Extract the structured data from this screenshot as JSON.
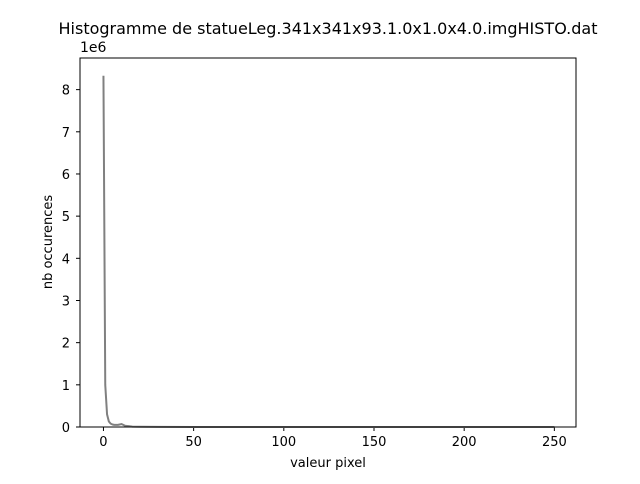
{
  "chart_data": {
    "type": "line",
    "title": "Histogramme de statueLeg.341x341x93.1.0x1.0x4.0.imgHISTO.dat",
    "xlabel": "valeur pixel",
    "ylabel": "nb occurences",
    "y_scale_label": "1e6",
    "xlim": [
      -13,
      262
    ],
    "ylim": [
      0,
      8.75
    ],
    "x_ticks": [
      0,
      50,
      100,
      150,
      200,
      250
    ],
    "y_ticks": [
      0,
      1,
      2,
      3,
      4,
      5,
      6,
      7,
      8
    ],
    "grid": false,
    "colors": {
      "line": "#808080",
      "axis": "#000000",
      "background": "#ffffff"
    },
    "series": [
      {
        "x": [
          0,
          1,
          2,
          3,
          4,
          5,
          6,
          7,
          8,
          9,
          10,
          11,
          12,
          14,
          16,
          20,
          30,
          50,
          100,
          150,
          200,
          250
        ],
        "values": [
          8.33,
          1.0,
          0.3,
          0.13,
          0.08,
          0.06,
          0.05,
          0.05,
          0.05,
          0.06,
          0.07,
          0.05,
          0.03,
          0.02,
          0.01,
          0.005,
          0.002,
          0.001,
          0.001,
          0.001,
          0.001,
          0.001
        ]
      }
    ]
  }
}
